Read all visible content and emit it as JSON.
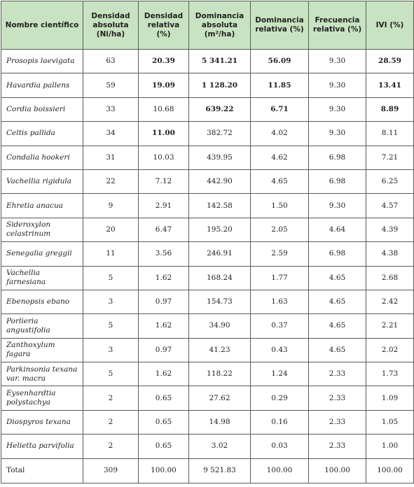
{
  "table": {
    "headers": [
      "Nombre científico",
      "Densidad absoluta (Ni/ha)",
      "Densidad relativa (%)",
      "Dominancia absoluta (m²/ha)",
      "Dominancia relativa (%)",
      "Frecuencia relativa (%)",
      "IVI (%)"
    ],
    "rows": [
      {
        "cells": [
          "Prosopis laevigata",
          "63",
          "20.39",
          "5 341.21",
          "56.09",
          "9.30",
          "28.59"
        ],
        "bold": [
          2,
          3,
          4,
          6
        ]
      },
      {
        "cells": [
          "Havardia pallens",
          "59",
          "19.09",
          "1 128.20",
          "11.85",
          "9.30",
          "13.41"
        ],
        "bold": [
          2,
          3,
          4,
          6
        ]
      },
      {
        "cells": [
          "Cordia boissieri",
          "33",
          "10.68",
          "639.22",
          "6.71",
          "9.30",
          "8.89"
        ],
        "bold": [
          3,
          4,
          6
        ]
      },
      {
        "cells": [
          "Celtis pallida",
          "34",
          "11.00",
          "382.72",
          "4.02",
          "9.30",
          "8.11"
        ],
        "bold": [
          2
        ]
      },
      {
        "cells": [
          "Condalia hookeri",
          "31",
          "10.03",
          "439.95",
          "4.62",
          "6.98",
          "7.21"
        ],
        "bold": []
      },
      {
        "cells": [
          "Vachellia rigidula",
          "22",
          "7.12",
          "442.90",
          "4.65",
          "6.98",
          "6.25"
        ],
        "bold": []
      },
      {
        "cells": [
          "Ehretia anacua",
          "9",
          "2.91",
          "142.58",
          "1.50",
          "9.30",
          "4.57"
        ],
        "bold": []
      },
      {
        "cells": [
          "Sideroxylon celastrinum",
          "20",
          "6.47",
          "195.20",
          "2.05",
          "4.64",
          "4.39"
        ],
        "bold": []
      },
      {
        "cells": [
          "Senegalia greggii",
          "11",
          "3.56",
          "246.91",
          "2.59",
          "6.98",
          "4.38"
        ],
        "bold": []
      },
      {
        "cells": [
          "Vachellia farnesiana",
          "5",
          "1.62",
          "168.24",
          "1.77",
          "4.65",
          "2.68"
        ],
        "bold": []
      },
      {
        "cells": [
          "Ebenopsis ebano",
          "3",
          "0.97",
          "154.73",
          "1.63",
          "4.65",
          "2.42"
        ],
        "bold": []
      },
      {
        "cells": [
          "Porlieria angustifolia",
          "5",
          "1.62",
          "34.90",
          "0.37",
          "4.65",
          "2.21"
        ],
        "bold": []
      },
      {
        "cells": [
          "Zanthoxylum fagara",
          "3",
          "0.97",
          "41.23",
          "0.43",
          "4.65",
          "2.02"
        ],
        "bold": []
      },
      {
        "cells": [
          "Parkinsonia texana var. macra",
          "5",
          "1.62",
          "118.22",
          "1.24",
          "2.33",
          "1.73"
        ],
        "bold": []
      },
      {
        "cells": [
          "Eysenhardtia polystachya",
          "2",
          "0.65",
          "27.62",
          "0.29",
          "2.33",
          "1.09"
        ],
        "bold": []
      },
      {
        "cells": [
          "Diospyros texana",
          "2",
          "0.65",
          "14.98",
          "0.16",
          "2.33",
          "1.05"
        ],
        "bold": []
      },
      {
        "cells": [
          "Helietta parvifolia",
          "2",
          "0.65",
          "3.02",
          "0.03",
          "2.33",
          "1.00"
        ],
        "bold": []
      }
    ],
    "total": [
      "Total",
      "309",
      "100.00",
      "9 521.83",
      "100.00",
      "100.00",
      "100.00"
    ]
  }
}
